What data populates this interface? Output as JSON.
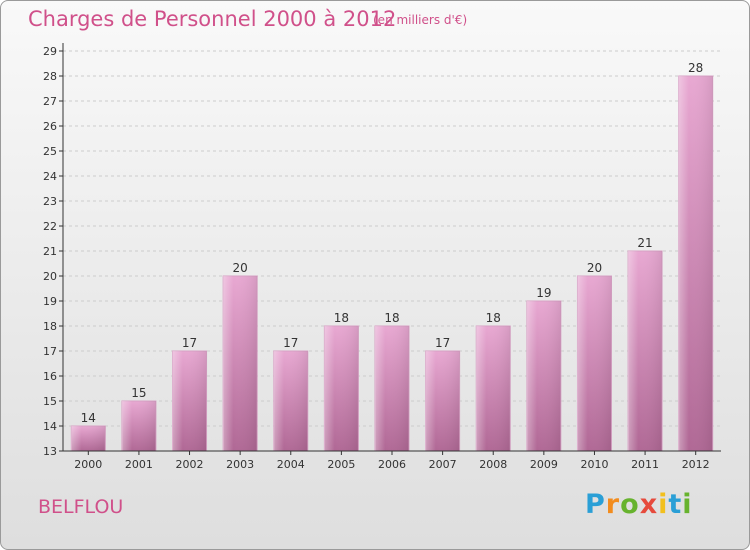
{
  "header": {
    "title": "Charges de Personnel 2000 à 2012",
    "subtitle": "(en milliers d'€)"
  },
  "footer": {
    "commune": "BELFLOU",
    "logo": "Proxiti"
  },
  "colors": {
    "title": "#d0508a",
    "bar_light": "#e8a8d2",
    "bar_dark": "#b06895",
    "axis": "#333333",
    "grid": "#cccccc"
  },
  "chart_data": {
    "type": "bar",
    "title": "Charges de Personnel 2000 à 2012",
    "subtitle": "(en milliers d'€)",
    "xlabel": "",
    "ylabel": "",
    "categories": [
      "2000",
      "2001",
      "2002",
      "2003",
      "2004",
      "2005",
      "2006",
      "2007",
      "2008",
      "2009",
      "2010",
      "2011",
      "2012"
    ],
    "values": [
      14,
      15,
      17,
      20,
      17,
      18,
      18,
      17,
      18,
      19,
      20,
      21,
      28
    ],
    "ylim": [
      13,
      29
    ],
    "yticks": [
      13,
      14,
      15,
      16,
      17,
      18,
      19,
      20,
      21,
      22,
      23,
      24,
      25,
      26,
      27,
      28,
      29
    ],
    "grid": "horizontal",
    "data_labels": true
  }
}
